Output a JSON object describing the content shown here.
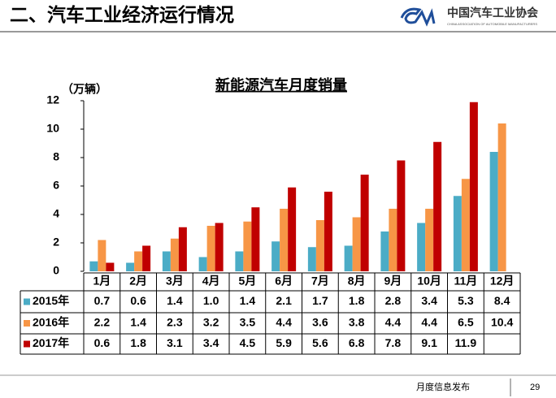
{
  "header": {
    "title": "二、汽车工业经济运行情况",
    "logo_text": "中国汽车工业协会",
    "logo_subtext": "CHINA ASSOCIATION OF AUTOMOBILE MANUFACTURERS"
  },
  "chart_data": {
    "type": "bar",
    "title": "新能源汽车月度销量",
    "y_label": "（万辆）",
    "categories": [
      "1月",
      "2月",
      "3月",
      "4月",
      "5月",
      "6月",
      "7月",
      "8月",
      "9月",
      "10月",
      "11月",
      "12月"
    ],
    "series": [
      {
        "name": "2015年",
        "color": "#4bacc6",
        "values": [
          0.7,
          0.6,
          1.4,
          1.0,
          1.4,
          2.1,
          1.7,
          1.8,
          2.8,
          3.4,
          5.3,
          8.4
        ],
        "value_labels": [
          "0.7",
          "0.6",
          "1.4",
          "1.0",
          "1.4",
          "2.1",
          "1.7",
          "1.8",
          "2.8",
          "3.4",
          "5.3",
          "8.4"
        ]
      },
      {
        "name": "2016年",
        "color": "#f79646",
        "values": [
          2.2,
          1.4,
          2.3,
          3.2,
          3.5,
          4.4,
          3.6,
          3.8,
          4.4,
          4.4,
          6.5,
          10.4
        ],
        "value_labels": [
          "2.2",
          "1.4",
          "2.3",
          "3.2",
          "3.5",
          "4.4",
          "3.6",
          "3.8",
          "4.4",
          "4.4",
          "6.5",
          "10.4"
        ]
      },
      {
        "name": "2017年",
        "color": "#c00000",
        "values": [
          0.6,
          1.8,
          3.1,
          3.4,
          4.5,
          5.9,
          5.6,
          6.8,
          7.8,
          9.1,
          11.9,
          null
        ],
        "value_labels": [
          "0.6",
          "1.8",
          "3.1",
          "3.4",
          "4.5",
          "5.9",
          "5.6",
          "6.8",
          "7.8",
          "9.1",
          "11.9",
          null
        ]
      }
    ],
    "ylim": [
      0,
      12
    ],
    "yticks": [
      0,
      2,
      4,
      6,
      8,
      10,
      12
    ],
    "grid": false
  },
  "footer": {
    "text": "月度信息发布",
    "page": 29
  }
}
